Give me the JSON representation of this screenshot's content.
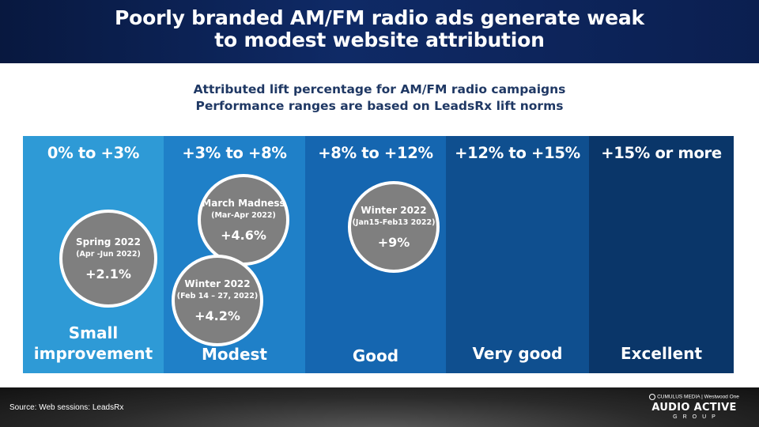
{
  "header": {
    "title_line1": "Poorly branded AM/FM radio ads generate weak",
    "title_line2": "to modest website attribution"
  },
  "chart_data": {
    "type": "table",
    "subtitle_line1": "Attributed lift percentage for AM/FM radio campaigns",
    "subtitle_line2": "Performance ranges are based on LeadsRx lift norms",
    "bands": [
      {
        "range": "0% to +3%",
        "label_lines": [
          "Small",
          "improvement"
        ],
        "min": 0,
        "max": 3,
        "color": "#2e9ad6"
      },
      {
        "range": "+3% to +8%",
        "label_lines": [
          "Modest"
        ],
        "min": 3,
        "max": 8,
        "color": "#1f80c8"
      },
      {
        "range": "+8% to +12%",
        "label_lines": [
          "Good"
        ],
        "min": 8,
        "max": 12,
        "color": "#1566b0"
      },
      {
        "range": "+12% to +15%",
        "label_lines": [
          "Very good"
        ],
        "min": 12,
        "max": 15,
        "color": "#0f4f8f"
      },
      {
        "range": "+15% or more",
        "label_lines": [
          "Excellent"
        ],
        "min": 15,
        "max": null,
        "color": "#0a3669"
      }
    ],
    "campaigns": [
      {
        "name": "Spring 2022",
        "period": "(Apr -Jun 2022)",
        "value_label": "+2.1%",
        "value": 2.1
      },
      {
        "name": "March Madness",
        "period": "(Mar-Apr 2022)",
        "value_label": "+4.6%",
        "value": 4.6
      },
      {
        "name": "Winter 2022",
        "period": "(Feb 14 – 27, 2022)",
        "value_label": "+4.2%",
        "value": 4.2
      },
      {
        "name": "Winter 2022",
        "period": "(Jan15-Feb13 2022)",
        "value_label": "+9%",
        "value": 9
      }
    ]
  },
  "footer": {
    "source": "Source: Web sessions: LeadsRx",
    "logo_top": "CUMULUS MEDIA | Westwood One",
    "logo_main": "AUDIO ACTIVE",
    "logo_group": "GROUP"
  }
}
